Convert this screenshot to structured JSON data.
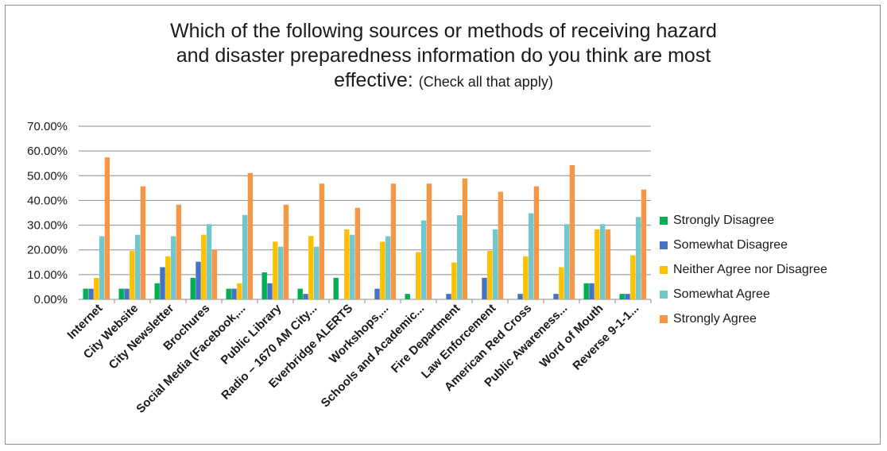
{
  "chart_data": {
    "type": "bar",
    "title_line1": "Which of the following sources or methods of receiving hazard",
    "title_line2": "and disaster preparedness information do you think are most",
    "title_line3_main": "effective:",
    "title_line3_note": "(Check all that apply)",
    "xlabel": "",
    "ylabel": "",
    "ylim": [
      0,
      70
    ],
    "yticks": [
      "0.00%",
      "10.00%",
      "20.00%",
      "30.00%",
      "40.00%",
      "50.00%",
      "60.00%",
      "70.00%"
    ],
    "grid": true,
    "legend_position": "right",
    "categories": [
      "Internet",
      "City Website",
      "City Newsletter",
      "Brochures",
      "Social Media (Facebook,...",
      "Public Library",
      "Radio – 1670 AM City...",
      "Everbridge ALERTS",
      "Workshops,...",
      "Schools and Academic...",
      "Fire Department",
      "Law Enforcement",
      "American Red Cross",
      "Public Awareness...",
      "Word of Mouth",
      "Reverse 9-1-1..."
    ],
    "series": [
      {
        "name": "Strongly Disagree",
        "color": "#00b050",
        "values": [
          4.3,
          4.3,
          6.5,
          8.7,
          4.3,
          10.9,
          4.3,
          8.7,
          0,
          2.2,
          0,
          0,
          0,
          0,
          6.5,
          2.2
        ]
      },
      {
        "name": "Somewhat Disagree",
        "color": "#4472c4",
        "values": [
          4.3,
          4.3,
          13.0,
          15.2,
          4.3,
          6.5,
          2.2,
          0,
          4.3,
          0,
          2.2,
          8.7,
          2.2,
          2.2,
          6.5,
          2.2
        ]
      },
      {
        "name": "Neither Agree nor Disagree",
        "color": "#ffc000",
        "values": [
          8.7,
          19.6,
          17.4,
          26.1,
          6.5,
          23.3,
          25.6,
          28.3,
          23.3,
          19.1,
          14.9,
          19.6,
          17.4,
          13.0,
          28.3,
          17.8
        ]
      },
      {
        "name": "Somewhat Agree",
        "color": "#70c8cc",
        "values": [
          25.5,
          26.1,
          25.5,
          30.4,
          34.1,
          21.3,
          21.3,
          26.1,
          25.5,
          31.9,
          34.0,
          28.3,
          34.8,
          30.4,
          30.4,
          33.3
        ]
      },
      {
        "name": "Strongly Agree",
        "color": "#f79646",
        "values": [
          57.4,
          45.7,
          38.3,
          20.0,
          51.1,
          38.3,
          46.8,
          37.0,
          46.8,
          46.8,
          48.9,
          43.5,
          45.7,
          54.3,
          28.3,
          44.4
        ]
      }
    ]
  }
}
